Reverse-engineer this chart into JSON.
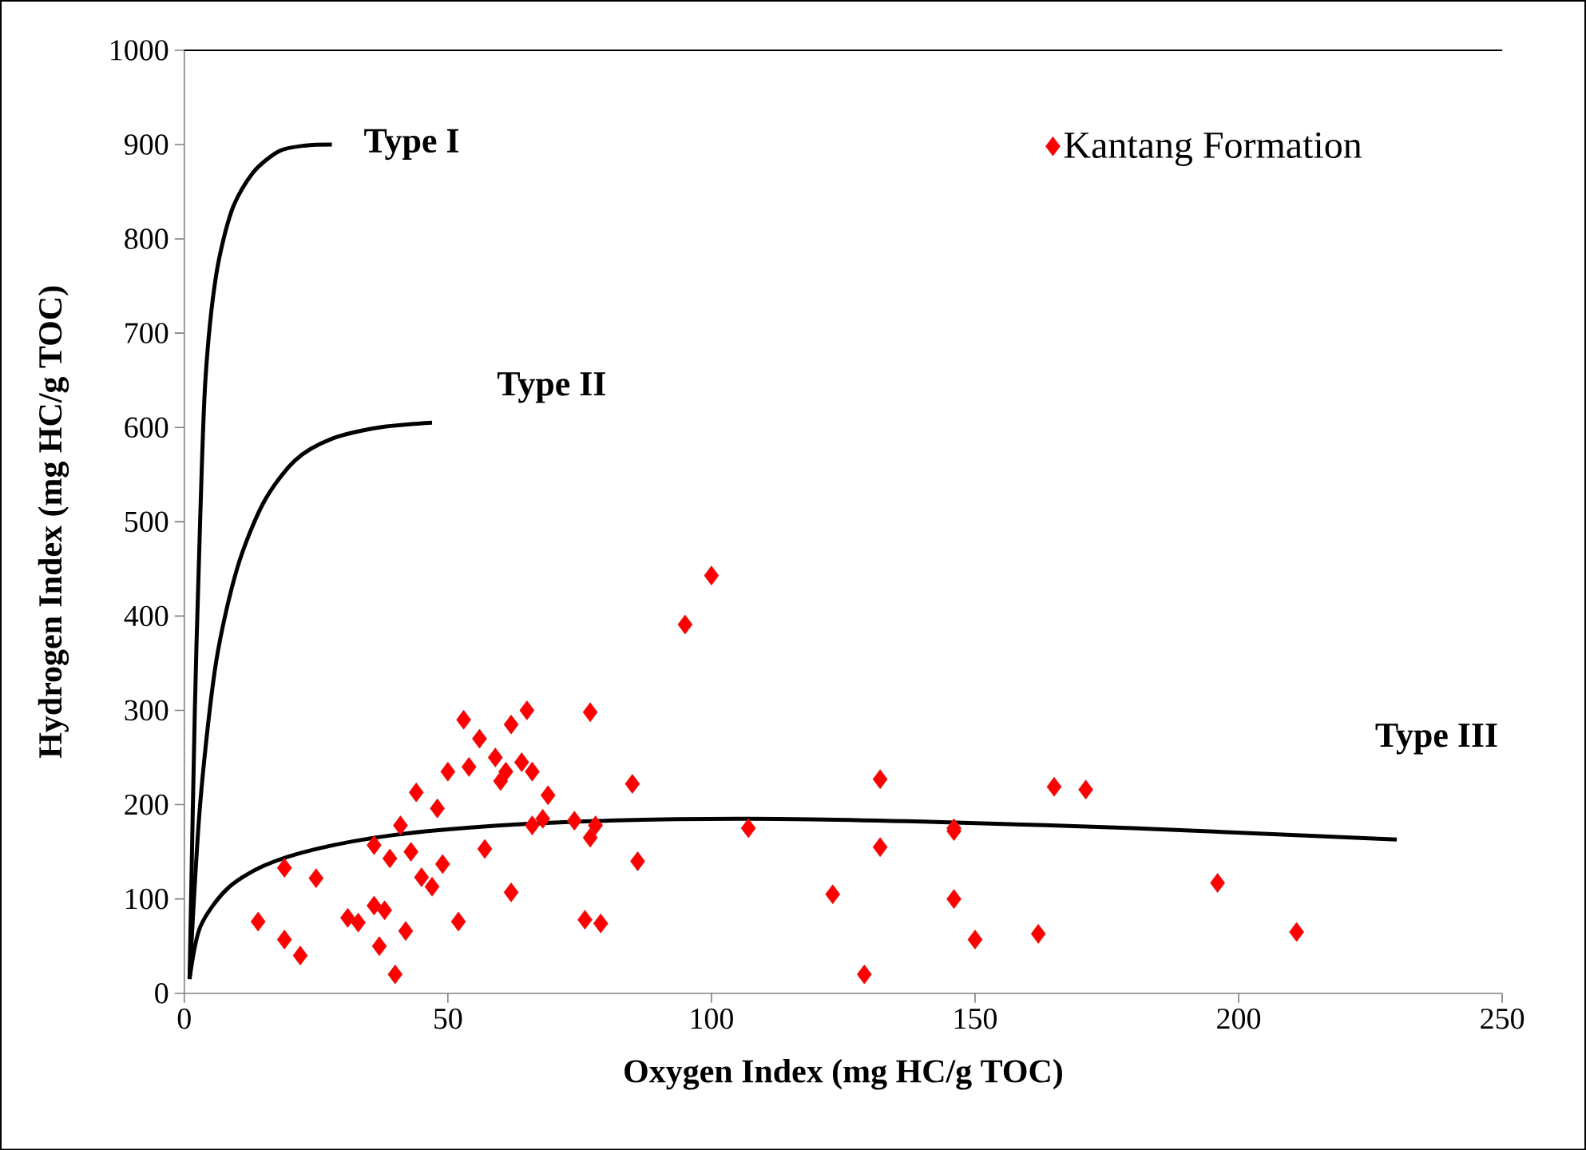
{
  "chart_data": {
    "type": "scatter",
    "xlabel": "Oxygen Index (mg HC/g TOC)",
    "ylabel": "Hydrogen Index (mg HC/g TOC)",
    "xlim": [
      0,
      250
    ],
    "ylim": [
      0,
      1000
    ],
    "xticks": [
      0,
      50,
      100,
      150,
      200,
      250
    ],
    "yticks": [
      0,
      100,
      200,
      300,
      400,
      500,
      600,
      700,
      800,
      900,
      1000
    ],
    "grid": false,
    "legend": "top right",
    "series": [
      {
        "name": "Kantang Formation",
        "color": "#ff0000",
        "marker": "diamond",
        "x": [
          14,
          19,
          19,
          22,
          25,
          31,
          33,
          36,
          36,
          37,
          38,
          39,
          40,
          41,
          42,
          43,
          44,
          45,
          47,
          48,
          49,
          50,
          52,
          53,
          54,
          56,
          57,
          59,
          60,
          61,
          62,
          62,
          64,
          65,
          66,
          66,
          68,
          69,
          74,
          76,
          77,
          77,
          78,
          79,
          85,
          86,
          95,
          100,
          107,
          123,
          129,
          132,
          132,
          146,
          146,
          146,
          150,
          162,
          165,
          171,
          196,
          211
        ],
        "values": [
          76,
          57,
          133,
          40,
          122,
          80,
          75,
          93,
          157,
          50,
          88,
          143,
          20,
          178,
          66,
          150,
          213,
          123,
          113,
          196,
          137,
          235,
          76,
          290,
          240,
          270,
          153,
          250,
          225,
          235,
          285,
          107,
          245,
          300,
          235,
          178,
          185,
          210,
          183,
          78,
          165,
          298,
          178,
          74,
          222,
          140,
          391,
          443,
          175,
          105,
          20,
          155,
          227,
          175,
          100,
          172,
          57,
          63,
          219,
          216,
          117,
          65
        ]
      },
      {
        "type": "line",
        "color": "#000000",
        "marker": "none",
        "x": [
          1,
          2,
          3,
          4,
          6,
          9,
          13,
          18,
          23,
          28
        ],
        "values": [
          15,
          300,
          500,
          650,
          760,
          830,
          870,
          893,
          899,
          900
        ]
      },
      {
        "type": "line",
        "color": "#000000",
        "marker": "none",
        "x": [
          1,
          3,
          6,
          10,
          15,
          21,
          28,
          37,
          47
        ],
        "values": [
          15,
          200,
          350,
          450,
          520,
          565,
          588,
          600,
          605
        ]
      },
      {
        "type": "line",
        "color": "#000000",
        "marker": "none",
        "x": [
          1,
          3,
          8,
          15,
          25,
          40,
          60,
          80,
          107,
          140,
          180,
          230
        ],
        "values": [
          15,
          70,
          110,
          135,
          153,
          168,
          178,
          183,
          185,
          182,
          175,
          163
        ]
      }
    ],
    "annotations": [
      "Type I",
      "Type II",
      "Type III"
    ]
  }
}
